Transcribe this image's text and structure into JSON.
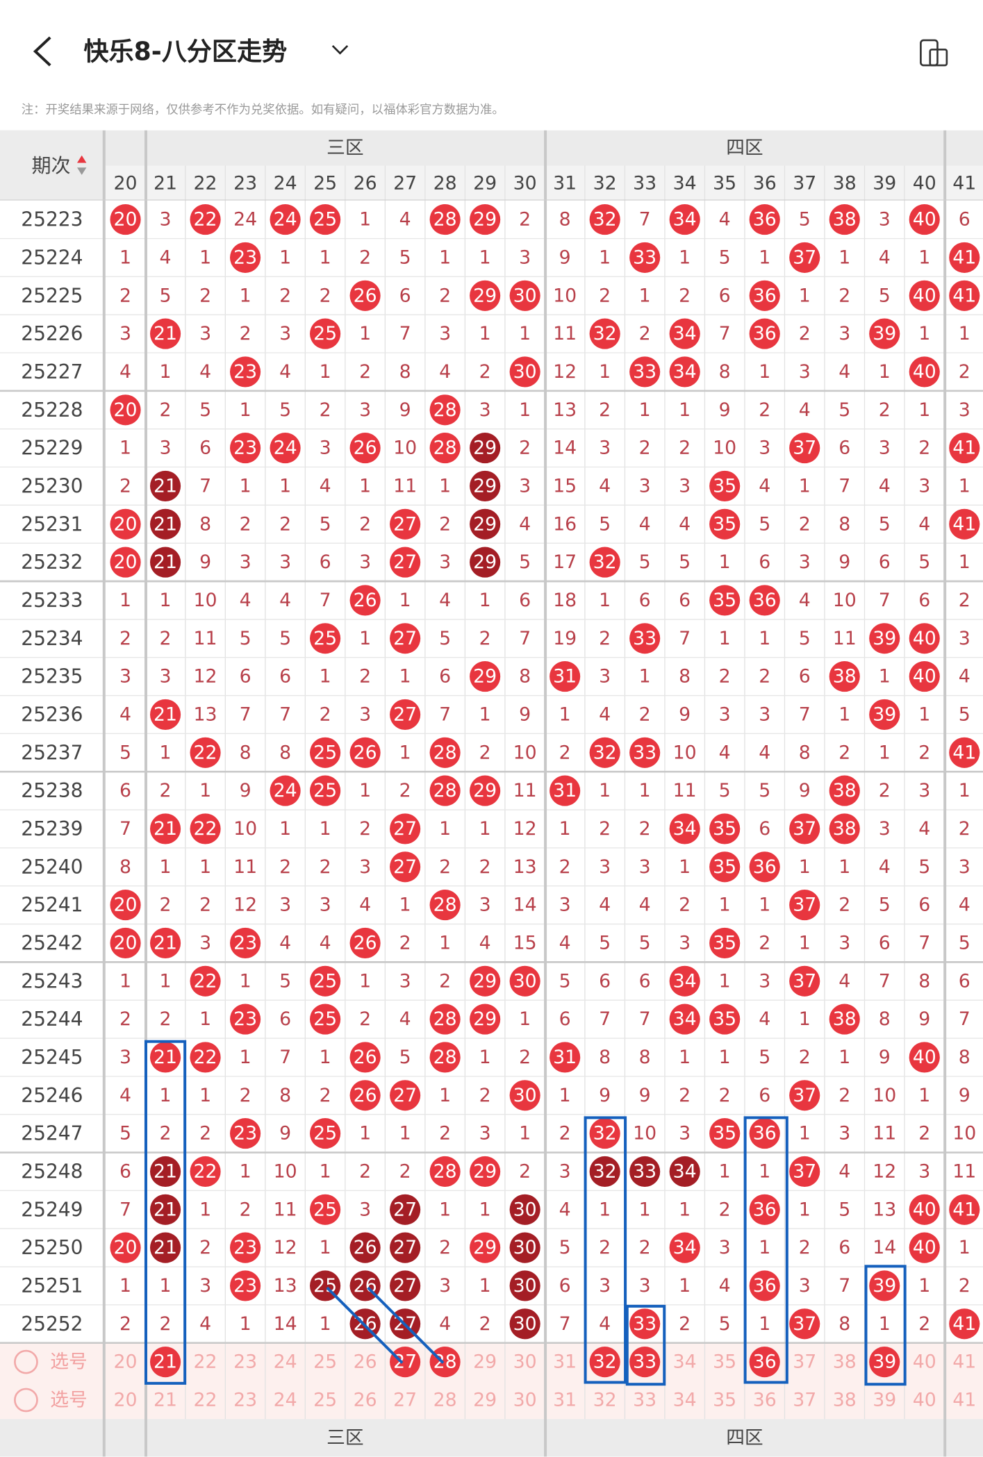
{
  "header": {
    "title": "快乐8-八分区走势"
  },
  "notice": "注：开奖结果来源于网络，仅供参考不作为兑奖依据。如有疑问，以福体彩官方数据为准。",
  "table": {
    "issue_header": "期次",
    "zones": [
      "三区",
      "四区"
    ],
    "columns": [
      20,
      21,
      22,
      23,
      24,
      25,
      26,
      27,
      28,
      29,
      30,
      31,
      32,
      33,
      34,
      35,
      36,
      37,
      38,
      39,
      40,
      41
    ],
    "rows": [
      {
        "issue": "25223",
        "values": [
          20,
          3,
          22,
          24,
          24,
          25,
          1,
          4,
          28,
          29,
          2,
          8,
          32,
          7,
          34,
          4,
          36,
          5,
          38,
          3,
          40,
          6
        ],
        "ball": "r-r-rr--rr--r-r-r-r-r-"
      },
      {
        "issue": "25224",
        "values": [
          1,
          4,
          1,
          23,
          1,
          1,
          2,
          5,
          1,
          1,
          3,
          9,
          1,
          33,
          1,
          5,
          1,
          37,
          1,
          4,
          1,
          41
        ],
        "ball": "---r---------r---r---r"
      },
      {
        "issue": "25225",
        "values": [
          2,
          5,
          2,
          1,
          2,
          2,
          26,
          6,
          2,
          29,
          30,
          10,
          2,
          1,
          2,
          6,
          36,
          1,
          2,
          5,
          40,
          41
        ],
        "ball": "------r--rr-----r---rr"
      },
      {
        "issue": "25226",
        "values": [
          3,
          21,
          3,
          2,
          3,
          25,
          1,
          7,
          3,
          1,
          1,
          11,
          32,
          2,
          34,
          7,
          36,
          2,
          3,
          39,
          1,
          1
        ],
        "ball": "-r---r------r-r-r--r--"
      },
      {
        "issue": "25227",
        "values": [
          4,
          1,
          4,
          23,
          4,
          1,
          2,
          8,
          4,
          2,
          30,
          12,
          1,
          33,
          34,
          8,
          1,
          3,
          4,
          1,
          40,
          2
        ],
        "ball": "---r------r--rr-----r-"
      },
      {
        "issue": "25228",
        "values": [
          20,
          2,
          5,
          1,
          5,
          2,
          3,
          9,
          28,
          3,
          1,
          13,
          2,
          1,
          1,
          9,
          2,
          4,
          5,
          2,
          1,
          3
        ],
        "ball": "r-------r-------------"
      },
      {
        "issue": "25229",
        "values": [
          1,
          3,
          6,
          23,
          24,
          3,
          26,
          10,
          28,
          29,
          2,
          14,
          3,
          2,
          2,
          10,
          3,
          37,
          6,
          3,
          2,
          41
        ],
        "ball": "---rr-r-rd-------r---r"
      },
      {
        "issue": "25230",
        "values": [
          2,
          21,
          7,
          1,
          1,
          4,
          1,
          11,
          1,
          29,
          3,
          15,
          4,
          3,
          3,
          35,
          4,
          1,
          7,
          4,
          3,
          1
        ],
        "ball": "-d-------d-----r------"
      },
      {
        "issue": "25231",
        "values": [
          20,
          21,
          8,
          2,
          2,
          5,
          2,
          27,
          2,
          29,
          4,
          16,
          5,
          4,
          4,
          35,
          5,
          2,
          8,
          5,
          4,
          41
        ],
        "ball": "rd-----r-d-----r-----r"
      },
      {
        "issue": "25232",
        "values": [
          20,
          21,
          9,
          3,
          3,
          6,
          3,
          27,
          3,
          29,
          5,
          17,
          32,
          5,
          5,
          1,
          6,
          3,
          9,
          6,
          5,
          1
        ],
        "ball": "rd-----r-d--r---------"
      },
      {
        "issue": "25233",
        "values": [
          1,
          1,
          10,
          4,
          4,
          7,
          26,
          1,
          4,
          1,
          6,
          18,
          1,
          6,
          6,
          35,
          36,
          4,
          10,
          7,
          6,
          2
        ],
        "ball": "------r--------rr-----"
      },
      {
        "issue": "25234",
        "values": [
          2,
          2,
          11,
          5,
          5,
          25,
          1,
          27,
          5,
          2,
          7,
          19,
          2,
          33,
          7,
          1,
          1,
          5,
          11,
          39,
          40,
          3
        ],
        "ball": "-----r-r-----r-----rr-"
      },
      {
        "issue": "25235",
        "values": [
          3,
          3,
          12,
          6,
          6,
          1,
          2,
          1,
          6,
          29,
          8,
          31,
          3,
          1,
          8,
          2,
          2,
          6,
          38,
          1,
          40,
          4
        ],
        "ball": "---------r-r------r-r-"
      },
      {
        "issue": "25236",
        "values": [
          4,
          21,
          13,
          7,
          7,
          2,
          3,
          27,
          7,
          1,
          9,
          1,
          4,
          2,
          9,
          3,
          3,
          7,
          1,
          39,
          1,
          5
        ],
        "ball": "-r-----r-----------r--"
      },
      {
        "issue": "25237",
        "values": [
          5,
          1,
          22,
          8,
          8,
          25,
          26,
          1,
          28,
          2,
          10,
          2,
          32,
          33,
          10,
          4,
          4,
          8,
          2,
          1,
          2,
          41
        ],
        "ball": "--r--rr-r---rr-------r"
      },
      {
        "issue": "25238",
        "values": [
          6,
          2,
          1,
          9,
          24,
          25,
          1,
          2,
          28,
          29,
          11,
          31,
          1,
          1,
          11,
          5,
          5,
          9,
          38,
          2,
          3,
          1
        ],
        "ball": "----rr--rr-r------r---"
      },
      {
        "issue": "25239",
        "values": [
          7,
          21,
          22,
          10,
          1,
          1,
          2,
          27,
          1,
          1,
          12,
          1,
          2,
          2,
          34,
          35,
          6,
          37,
          38,
          3,
          4,
          2
        ],
        "ball": "-rr----r------rr-rr---"
      },
      {
        "issue": "25240",
        "values": [
          8,
          1,
          1,
          11,
          2,
          2,
          3,
          27,
          2,
          2,
          13,
          2,
          3,
          3,
          1,
          35,
          36,
          1,
          1,
          4,
          5,
          3
        ],
        "ball": "-------r-------rr-----"
      },
      {
        "issue": "25241",
        "values": [
          20,
          2,
          2,
          12,
          3,
          3,
          4,
          1,
          28,
          3,
          14,
          3,
          4,
          4,
          2,
          1,
          1,
          37,
          2,
          5,
          6,
          4
        ],
        "ball": "r-------r--------r----"
      },
      {
        "issue": "25242",
        "values": [
          20,
          21,
          3,
          23,
          4,
          4,
          26,
          2,
          1,
          4,
          15,
          4,
          5,
          5,
          3,
          35,
          2,
          1,
          3,
          6,
          7,
          5
        ],
        "ball": "rr-r--r--------r------"
      },
      {
        "issue": "25243",
        "values": [
          1,
          1,
          22,
          1,
          5,
          25,
          1,
          3,
          2,
          29,
          30,
          5,
          6,
          6,
          34,
          1,
          3,
          37,
          4,
          7,
          8,
          6
        ],
        "ball": "--r--r---rr---r--r----"
      },
      {
        "issue": "25244",
        "values": [
          2,
          2,
          1,
          23,
          6,
          25,
          2,
          4,
          28,
          29,
          1,
          6,
          7,
          7,
          34,
          35,
          4,
          1,
          38,
          8,
          9,
          7
        ],
        "ball": "---r-r--rr----rr--r---"
      },
      {
        "issue": "25245",
        "values": [
          3,
          21,
          22,
          1,
          7,
          1,
          26,
          5,
          28,
          1,
          2,
          31,
          8,
          8,
          1,
          1,
          5,
          2,
          1,
          9,
          40,
          8
        ],
        "ball": "-rr---r-r--r--------r-"
      },
      {
        "issue": "25246",
        "values": [
          4,
          1,
          1,
          2,
          8,
          2,
          26,
          27,
          1,
          2,
          30,
          1,
          9,
          9,
          2,
          2,
          6,
          37,
          2,
          10,
          1,
          9
        ],
        "ball": "------rr--r------r----"
      },
      {
        "issue": "25247",
        "values": [
          5,
          2,
          2,
          23,
          9,
          25,
          1,
          1,
          2,
          3,
          1,
          2,
          32,
          10,
          3,
          35,
          36,
          1,
          3,
          11,
          2,
          10
        ],
        "ball": "---r-r------r--rr-----"
      },
      {
        "issue": "25248",
        "values": [
          6,
          21,
          22,
          1,
          10,
          1,
          2,
          2,
          28,
          29,
          2,
          3,
          32,
          33,
          34,
          1,
          1,
          37,
          4,
          12,
          3,
          11
        ],
        "ball": "-dr-----rr--ddd--r----"
      },
      {
        "issue": "25249",
        "values": [
          7,
          21,
          1,
          2,
          11,
          25,
          3,
          27,
          1,
          1,
          30,
          4,
          1,
          1,
          1,
          2,
          36,
          1,
          5,
          13,
          40,
          41
        ],
        "ball": "-d---r-d--d-----r---rr"
      },
      {
        "issue": "25250",
        "values": [
          20,
          21,
          2,
          23,
          12,
          1,
          26,
          27,
          2,
          29,
          30,
          5,
          2,
          2,
          34,
          3,
          1,
          2,
          6,
          14,
          40,
          1
        ],
        "ball": "rd-r--dd-rd---r-----r-"
      },
      {
        "issue": "25251",
        "values": [
          1,
          1,
          3,
          23,
          13,
          25,
          26,
          27,
          3,
          1,
          30,
          6,
          3,
          3,
          1,
          4,
          36,
          3,
          7,
          39,
          1,
          2
        ],
        "ball": "---r-ddd--d-----r--r--"
      },
      {
        "issue": "25252",
        "values": [
          2,
          2,
          4,
          1,
          14,
          1,
          26,
          27,
          4,
          2,
          30,
          7,
          4,
          33,
          2,
          5,
          1,
          37,
          8,
          1,
          2,
          41
        ],
        "ball": "------dd--d--r---r---r"
      }
    ],
    "pick_rows": [
      {
        "label": "选号",
        "values": [
          20,
          21,
          22,
          23,
          24,
          25,
          26,
          27,
          28,
          29,
          30,
          31,
          32,
          33,
          34,
          35,
          36,
          37,
          38,
          39,
          40,
          41
        ],
        "ball": "-r-----rr---rr--r--r--"
      },
      {
        "label": "选号",
        "values": [
          20,
          21,
          22,
          23,
          24,
          25,
          26,
          27,
          28,
          29,
          30,
          31,
          32,
          33,
          34,
          35,
          36,
          37,
          38,
          39,
          40,
          41
        ],
        "ball": "----------------------"
      }
    ],
    "footer_zones": [
      "三区",
      "四区"
    ]
  }
}
